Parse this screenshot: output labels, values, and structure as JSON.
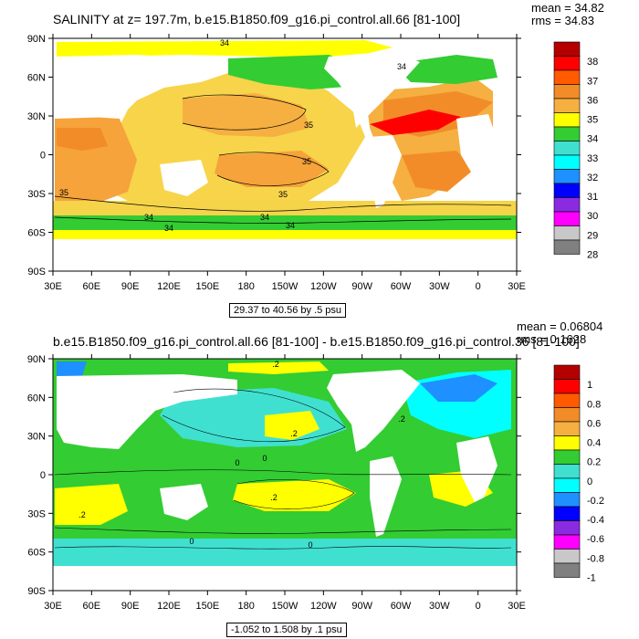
{
  "panels": [
    {
      "title": "SALINITY at z= 197.7m, b.e15.B1850.f09_g16.pi_control.all.66 [81-100]",
      "mean": "mean = 34.82",
      "rms": "rms = 34.83",
      "range": "29.37 to 40.56 by .5 psu",
      "y_ticks": [
        "90N",
        "60N",
        "30N",
        "0",
        "30S",
        "60S",
        "90S"
      ],
      "x_ticks": [
        "30E",
        "60E",
        "90E",
        "120E",
        "150E",
        "180",
        "150W",
        "120W",
        "90W",
        "60W",
        "30W",
        "0",
        "30E"
      ],
      "colorbar_labels": [
        "38",
        "37",
        "36",
        "35",
        "34",
        "33",
        "32",
        "31",
        "30",
        "29",
        "28"
      ],
      "contour_labels": [
        "34",
        "35",
        "35",
        "35",
        "35",
        "34",
        "34",
        "34",
        "34",
        "34"
      ]
    },
    {
      "title": "b.e15.B1850.f09_g16.pi_control.all.66 [81-100] - b.e15.B1850.f09_g16.pi_control.36 [81-100]",
      "mean": "mean = 0.06804",
      "rms": "rms = 0.1628",
      "range": "-1.052 to 1.508 by .1 psu",
      "y_ticks": [
        "90N",
        "60N",
        "30N",
        "0",
        "30S",
        "60S",
        "90S"
      ],
      "x_ticks": [
        "30E",
        "60E",
        "90E",
        "120E",
        "150E",
        "180",
        "150W",
        "120W",
        "90W",
        "60W",
        "30W",
        "0",
        "30E"
      ],
      "colorbar_labels": [
        "1",
        "0.8",
        "0.6",
        "0.4",
        "0.2",
        "0",
        "-0.2",
        "-0.4",
        "-0.6",
        "-0.8",
        "-1"
      ],
      "contour_labels": [
        ".2",
        "0",
        ".2",
        "0",
        ".2",
        ".2",
        "0",
        ".2",
        "0"
      ]
    }
  ],
  "colors": {
    "top_scale": [
      "#b50000",
      "#ff0000",
      "#ff5a00",
      "#f28c28",
      "#f5b041",
      "#ffff00",
      "#33cc33",
      "#40e0d0",
      "#00ffff",
      "#1e90ff",
      "#0000ff",
      "#8a2be2",
      "#ff00ff",
      "#c8c8c8",
      "#808080"
    ],
    "bottom_scale": [
      "#b50000",
      "#ff0000",
      "#ff5a00",
      "#f28c28",
      "#f5b041",
      "#ffff00",
      "#33cc33",
      "#40e0d0",
      "#00ffff",
      "#1e90ff",
      "#0000ff",
      "#8a2be2",
      "#ff00ff",
      "#c8c8c8",
      "#808080"
    ]
  }
}
